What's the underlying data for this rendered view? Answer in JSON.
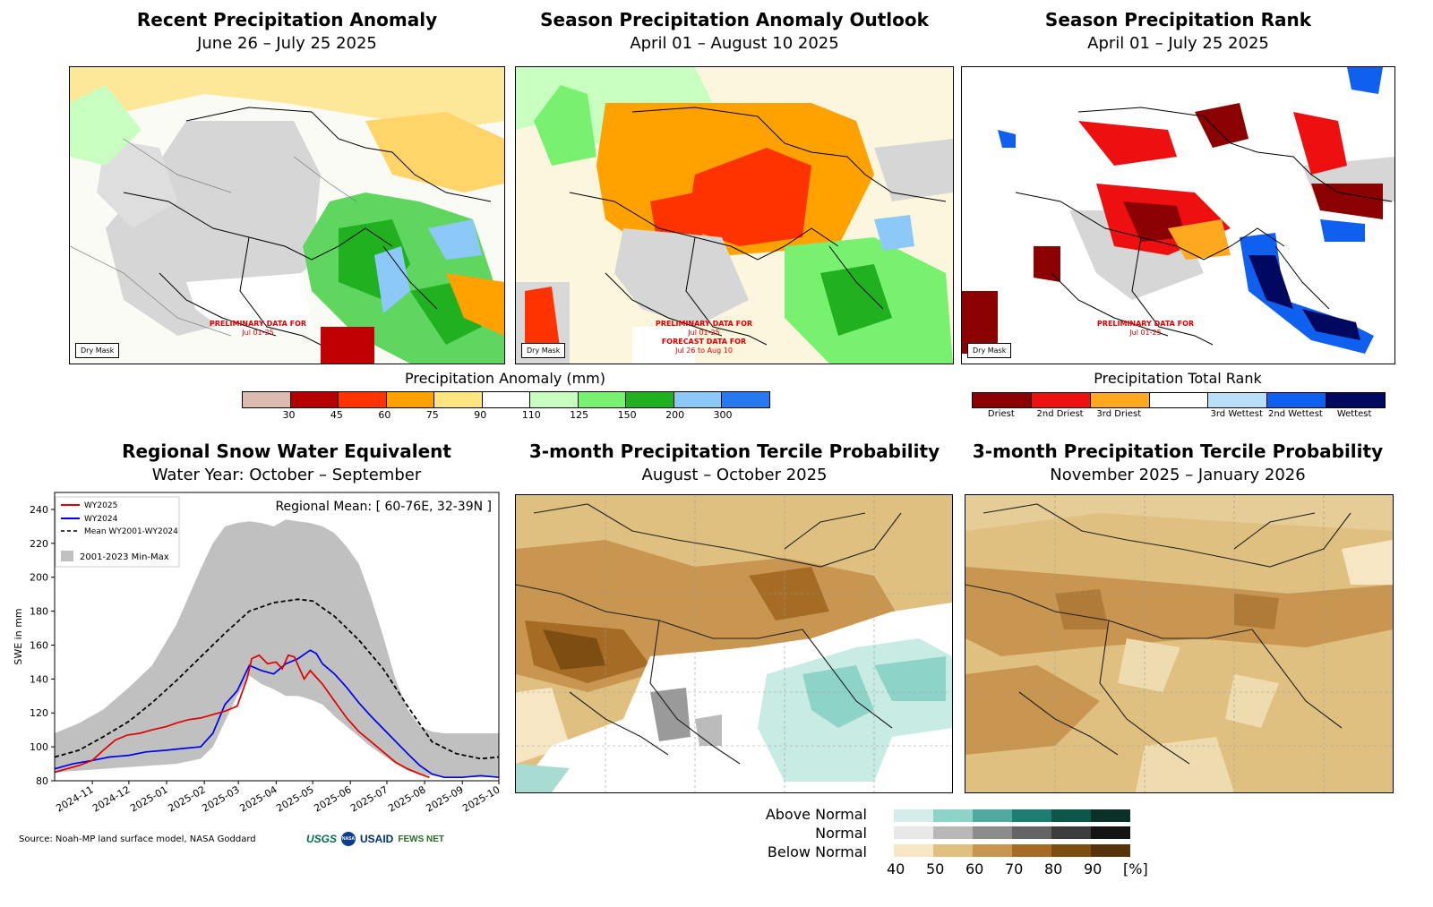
{
  "panels": {
    "p1": {
      "title": "Recent Precipitation Anomaly",
      "subtitle": "June 26 – July 25 2025"
    },
    "p2": {
      "title": "Season Precipitation Anomaly Outlook",
      "subtitle": "April 01 – August 10 2025"
    },
    "p3": {
      "title": "Season Precipitation Rank",
      "subtitle": "April 01 – July 25 2025"
    },
    "p4": {
      "title": "Regional Snow Water Equivalent",
      "subtitle": "Water Year: October – September"
    },
    "p5": {
      "title": "3-month Precipitation Tercile Probability",
      "subtitle": "August – October 2025"
    },
    "p6": {
      "title": "3-month Precipitation Tercile Probability",
      "subtitle": "November 2025 – January 2026"
    }
  },
  "map_notes": {
    "dry_mask": "Dry Mask",
    "prelim_label": "PRELIMINARY DATA FOR",
    "prelim_dates": "Jul 01-25",
    "forecast_label": "FORECAST DATA FOR",
    "forecast_dates": "Jul 26 to Aug 10"
  },
  "colorbars": {
    "anomaly": {
      "title": "Precipitation Anomaly (mm)",
      "colors": [
        "#dcbcb0",
        "#b40000",
        "#ff3300",
        "#ffa200",
        "#ffe680",
        "#ffffff",
        "#c8ffc0",
        "#78f070",
        "#20b020",
        "#8cc8f8",
        "#2878f0"
      ],
      "ticks": [
        "30",
        "45",
        "60",
        "75",
        "90",
        "110",
        "125",
        "150",
        "200",
        "300"
      ]
    },
    "rank": {
      "title": "Precipitation Total Rank",
      "colors": [
        "#8b0000",
        "#ee1010",
        "#ffa820",
        "#ffffff",
        "#b8e0f8",
        "#1060f0",
        "#000860"
      ],
      "labels": [
        "Driest",
        "2nd Driest",
        "3rd Driest",
        "3rd Wettest",
        "2nd Wettest",
        "Wettest"
      ]
    },
    "tercile": {
      "rows": [
        {
          "label": "Above Normal",
          "colors": [
            "#d4ede9",
            "#8ed3c7",
            "#4fa99e",
            "#1f7c70",
            "#0d564a",
            "#0a3028"
          ]
        },
        {
          "label": "Normal",
          "colors": [
            "#e8e8e8",
            "#b8b8b8",
            "#8c8c8c",
            "#646464",
            "#3c3c3c",
            "#141414"
          ]
        },
        {
          "label": "Below Normal",
          "colors": [
            "#f6e6c4",
            "#dfc080",
            "#c89650",
            "#a66c25",
            "#7e4d12",
            "#56330a"
          ]
        }
      ],
      "ticks": [
        "40",
        "50",
        "60",
        "70",
        "80",
        "90",
        "[%]"
      ]
    }
  },
  "chart_data": {
    "type": "line",
    "title": "Regional Snow Water Equivalent",
    "subtitle": "Water Year: October – September",
    "annotation": "Regional Mean: [ 60-76E, 32-39N ]",
    "ylabel": "SWE in mm",
    "xlabel": "",
    "ylim": [
      80,
      250
    ],
    "xlim": [
      0,
      365
    ],
    "yticks": [
      "80",
      "100",
      "120",
      "140",
      "160",
      "180",
      "200",
      "220",
      "240"
    ],
    "xticks": [
      {
        "label": "2024-11",
        "day": 31
      },
      {
        "label": "2024-12",
        "day": 61
      },
      {
        "label": "2025-01",
        "day": 92
      },
      {
        "label": "2025-02",
        "day": 123
      },
      {
        "label": "2025-03",
        "day": 151
      },
      {
        "label": "2025-04",
        "day": 182
      },
      {
        "label": "2025-05",
        "day": 212
      },
      {
        "label": "2025-06",
        "day": 243
      },
      {
        "label": "2025-07",
        "day": 273
      },
      {
        "label": "2025-08",
        "day": 304
      },
      {
        "label": "2025-09",
        "day": 335
      },
      {
        "label": "2025-10",
        "day": 365
      }
    ],
    "legend": [
      "WY2025",
      "WY2024",
      "Mean WY2001-WY2024",
      "2001-2023 Min-Max"
    ],
    "series": [
      {
        "name": "WY2025",
        "color": "#e00000",
        "x": [
          0,
          10,
          20,
          31,
          40,
          50,
          60,
          70,
          80,
          92,
          100,
          110,
          120,
          130,
          140,
          150,
          158,
          162,
          168,
          175,
          182,
          187,
          192,
          197,
          200,
          205,
          210,
          215,
          220,
          230,
          240,
          250,
          260,
          270,
          280,
          290,
          300,
          308
        ],
        "y": [
          85,
          87,
          89,
          92,
          98,
          104,
          107,
          108,
          110,
          112,
          114,
          116,
          117,
          119,
          121,
          124,
          140,
          152,
          154,
          149,
          150,
          146,
          154,
          153,
          148,
          140,
          145,
          141,
          137,
          127,
          117,
          109,
          103,
          97,
          91,
          87,
          84,
          82
        ]
      },
      {
        "name": "WY2024",
        "color": "#0000e8",
        "x": [
          0,
          15,
          31,
          45,
          61,
          75,
          92,
          105,
          120,
          130,
          140,
          150,
          160,
          170,
          180,
          190,
          200,
          210,
          215,
          220,
          230,
          240,
          250,
          260,
          275,
          290,
          300,
          310,
          320,
          335,
          350,
          365
        ],
        "y": [
          87,
          90,
          92,
          94,
          95,
          97,
          98,
          99,
          100,
          108,
          125,
          133,
          148,
          145,
          143,
          149,
          152,
          157,
          155,
          149,
          143,
          135,
          126,
          118,
          107,
          96,
          89,
          84,
          82,
          82,
          83,
          82
        ]
      },
      {
        "name": "Mean WY2001-WY2024",
        "color": "#000000",
        "dashed": true,
        "x": [
          0,
          20,
          40,
          61,
          80,
          100,
          120,
          140,
          160,
          180,
          200,
          212,
          230,
          250,
          270,
          290,
          310,
          330,
          350,
          365
        ],
        "y": [
          94,
          98,
          106,
          115,
          126,
          139,
          153,
          167,
          180,
          185,
          187,
          186,
          177,
          163,
          146,
          124,
          103,
          96,
          93,
          94
        ]
      }
    ],
    "band": {
      "name": "2001-2023 Min-Max",
      "color": "#c0c0c0",
      "x": [
        0,
        20,
        40,
        61,
        80,
        100,
        120,
        130,
        140,
        150,
        160,
        170,
        180,
        190,
        200,
        210,
        220,
        230,
        240,
        250,
        260,
        270,
        280,
        290,
        300,
        310,
        320,
        335,
        350,
        365
      ],
      "ymin": [
        85,
        86,
        87,
        88,
        89,
        90,
        93,
        100,
        115,
        130,
        142,
        137,
        134,
        130,
        130,
        128,
        125,
        118,
        112,
        106,
        100,
        95,
        90,
        86,
        84,
        83,
        82,
        82,
        82,
        82
      ],
      "ymax": [
        108,
        114,
        122,
        135,
        148,
        172,
        205,
        220,
        230,
        232,
        233,
        232,
        230,
        234,
        233,
        232,
        230,
        226,
        218,
        208,
        188,
        165,
        140,
        122,
        112,
        109,
        108,
        108,
        108,
        108
      ]
    }
  },
  "footer": {
    "source": "Source: Noah-MP land surface model, NASA Goddard",
    "logos": [
      "USGS",
      "NASA",
      "USAID",
      "FEWS NET"
    ]
  }
}
